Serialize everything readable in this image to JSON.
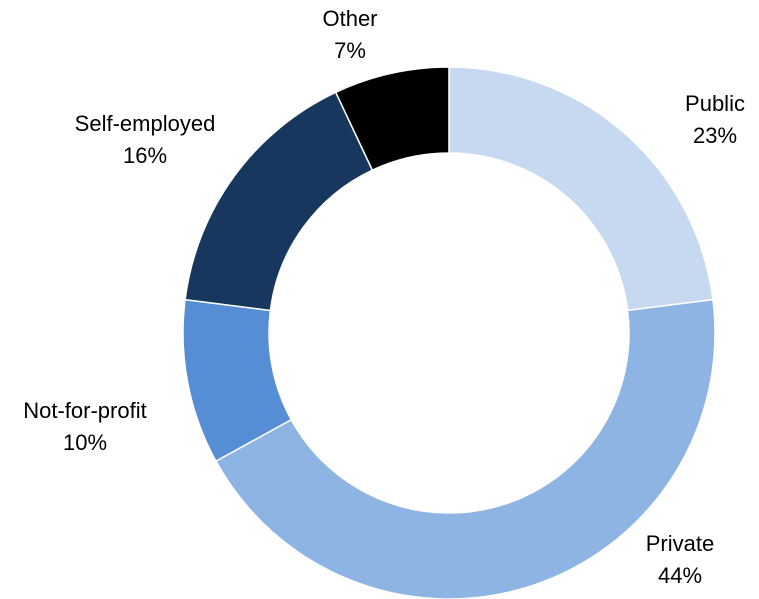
{
  "chart_data": {
    "type": "donut",
    "categories": [
      "Public",
      "Private",
      "Not-for-profit",
      "Self-employed",
      "Other"
    ],
    "values": [
      23,
      44,
      10,
      16,
      7
    ],
    "value_labels": [
      "23%",
      "44%",
      "10%",
      "16%",
      "7%"
    ],
    "colors": [
      "#c6d9f1",
      "#8eb4e3",
      "#558ed5",
      "#17375e",
      "#000000"
    ]
  }
}
